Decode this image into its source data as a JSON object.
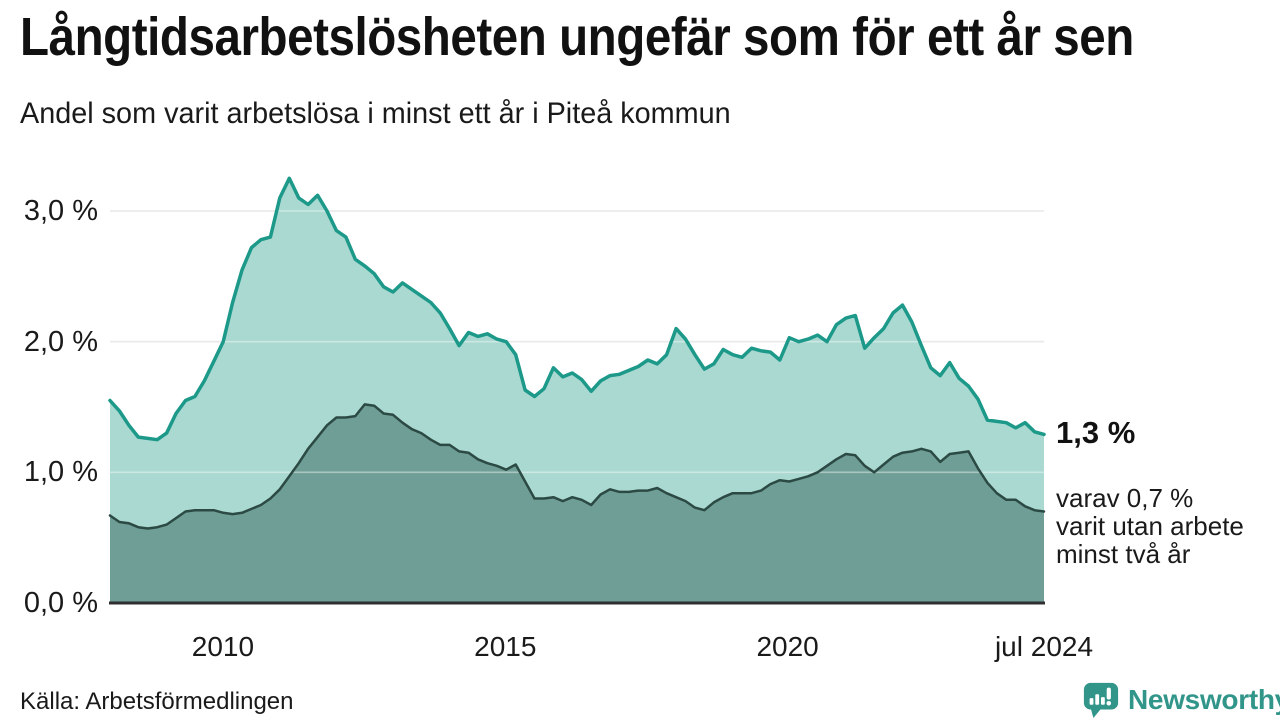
{
  "chart_data": {
    "type": "area",
    "title": "Långtidsarbetslösheten ungefär som för ett år sen",
    "subtitle": "Andel som varit arbetslösa i minst ett år i Piteå kommun",
    "x_start": 2008.0,
    "x_end": 2024.54,
    "ylim": [
      0,
      3.3
    ],
    "grid": true,
    "legend_position": "none",
    "y_ticks": [
      {
        "label": "0,0 %",
        "value": 0
      },
      {
        "label": "1,0 %",
        "value": 1
      },
      {
        "label": "2,0 %",
        "value": 2
      },
      {
        "label": "3,0 %",
        "value": 3
      }
    ],
    "x_ticks": [
      {
        "label": "2010",
        "value": 2010
      },
      {
        "label": "2015",
        "value": 2015
      },
      {
        "label": "2020",
        "value": 2020
      },
      {
        "label": "jul 2024",
        "value": 2024.54
      }
    ],
    "series": [
      {
        "id": "arbetslosa-minst-ett-ar",
        "line_color": "#1d998a",
        "fill_color": "#aad9d1",
        "line_width": 3.5,
        "values": [
          1.55,
          1.47,
          1.36,
          1.27,
          1.26,
          1.25,
          1.3,
          1.45,
          1.55,
          1.58,
          1.7,
          1.85,
          2.0,
          2.3,
          2.55,
          2.72,
          2.78,
          2.8,
          3.1,
          3.25,
          3.1,
          3.05,
          3.12,
          3.0,
          2.85,
          2.8,
          2.63,
          2.58,
          2.52,
          2.42,
          2.38,
          2.45,
          2.4,
          2.35,
          2.3,
          2.22,
          2.1,
          1.97,
          2.07,
          2.04,
          2.06,
          2.02,
          2.0,
          1.9,
          1.63,
          1.58,
          1.64,
          1.8,
          1.73,
          1.76,
          1.71,
          1.62,
          1.7,
          1.74,
          1.75,
          1.78,
          1.81,
          1.86,
          1.83,
          1.9,
          2.1,
          2.02,
          1.9,
          1.79,
          1.83,
          1.94,
          1.9,
          1.88,
          1.95,
          1.93,
          1.92,
          1.86,
          2.03,
          2.0,
          2.02,
          2.05,
          2.0,
          2.13,
          2.18,
          2.2,
          1.95,
          2.03,
          2.1,
          2.22,
          2.28,
          2.15,
          1.97,
          1.8,
          1.74,
          1.84,
          1.72,
          1.66,
          1.56,
          1.4,
          1.39,
          1.38,
          1.34,
          1.38,
          1.31,
          1.29
        ]
      },
      {
        "id": "arbetslosa-minst-tva-ar",
        "line_color": "#2c4a44",
        "fill_color": "#6f9e96",
        "line_width": 2.5,
        "values": [
          0.67,
          0.62,
          0.61,
          0.58,
          0.57,
          0.58,
          0.6,
          0.65,
          0.7,
          0.71,
          0.71,
          0.71,
          0.69,
          0.68,
          0.69,
          0.72,
          0.75,
          0.8,
          0.87,
          0.97,
          1.07,
          1.18,
          1.27,
          1.36,
          1.42,
          1.42,
          1.43,
          1.52,
          1.51,
          1.45,
          1.44,
          1.38,
          1.33,
          1.3,
          1.25,
          1.21,
          1.21,
          1.16,
          1.15,
          1.1,
          1.07,
          1.05,
          1.02,
          1.06,
          0.93,
          0.8,
          0.8,
          0.81,
          0.78,
          0.81,
          0.79,
          0.75,
          0.83,
          0.87,
          0.85,
          0.85,
          0.86,
          0.86,
          0.88,
          0.84,
          0.81,
          0.78,
          0.73,
          0.71,
          0.77,
          0.81,
          0.84,
          0.84,
          0.84,
          0.86,
          0.91,
          0.94,
          0.93,
          0.95,
          0.97,
          1.0,
          1.05,
          1.1,
          1.14,
          1.13,
          1.05,
          1.0,
          1.06,
          1.12,
          1.15,
          1.16,
          1.18,
          1.16,
          1.08,
          1.14,
          1.15,
          1.16,
          1.03,
          0.92,
          0.84,
          0.79,
          0.79,
          0.74,
          0.71,
          0.7
        ]
      }
    ],
    "annotations": {
      "end_label": "1,3 %",
      "sub_label_lines": [
        "varav 0,7 %",
        "varit utan arbete",
        "minst två år"
      ]
    },
    "colors": {
      "grid": "#dcdcdc",
      "grid_overlay": "rgba(255,255,255,0.4)",
      "baseline": "#2f2f2f",
      "text": "#1a1a1a"
    }
  },
  "footer": {
    "source": "Källa: Arbetsförmedlingen",
    "brand": "Newsworthy",
    "brand_color": "#31958a"
  }
}
